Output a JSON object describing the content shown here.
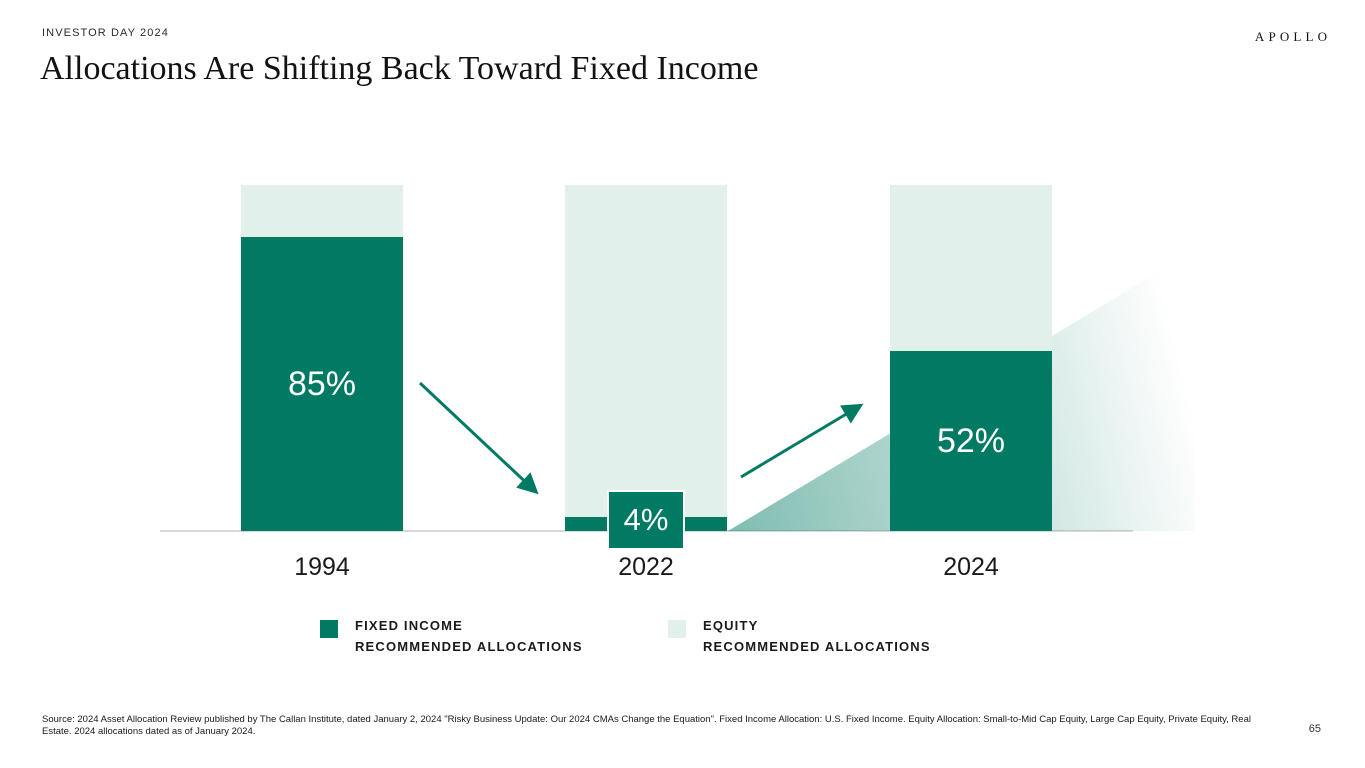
{
  "slide": {
    "eyebrow": "INVESTOR DAY 2024",
    "title": "Allocations Are Shifting Back Toward Fixed Income",
    "brand": "APOLLO",
    "page_number": "65",
    "source": "Source: 2024 Asset Allocation Review published by The Callan Institute, dated January 2, 2024 \"Risky Business Update: Our 2024 CMAs Change the Equation\". Fixed Income Allocation: U.S. Fixed Income. Equity Allocation: Small-to-Mid Cap Equity, Large Cap Equity, Private Equity, Real Estate. 2024 allocations dated as of January 2024."
  },
  "colors": {
    "fixed_income": "#007a63",
    "equity": "#e2f0eb",
    "baseline": "#d9d9d9",
    "text": "#1a1a1a"
  },
  "legend": {
    "items": [
      {
        "label_line1": "FIXED INCOME",
        "label_line2": "RECOMMENDED ALLOCATIONS",
        "color": "#007a63"
      },
      {
        "label_line1": "EQUITY",
        "label_line2": "RECOMMENDED ALLOCATIONS",
        "color": "#e2f0eb"
      }
    ]
  },
  "chart_data": {
    "type": "bar",
    "subtype": "stacked-percentage-columns",
    "title": "Allocations Are Shifting Back Toward Fixed Income",
    "categories": [
      "1994",
      "2022",
      "2024"
    ],
    "series": [
      {
        "name": "Fixed Income Recommended Allocations",
        "values": [
          85,
          4,
          52
        ]
      },
      {
        "name": "Equity Recommended Allocations",
        "values": [
          15,
          96,
          48
        ]
      }
    ],
    "value_labels": [
      "85%",
      "4%",
      "52%"
    ],
    "ylim": [
      0,
      100
    ],
    "grid": false,
    "legend_position": "bottom",
    "annotations": [
      {
        "type": "arrow",
        "direction": "down-right",
        "from": "1994",
        "to": "2022"
      },
      {
        "type": "arrow",
        "direction": "up-right",
        "from": "2022",
        "to": "2024"
      },
      {
        "type": "gradient-wedge",
        "description": "rising green gradient wedge from 2022 baseline toward upper right past 2024"
      }
    ]
  }
}
